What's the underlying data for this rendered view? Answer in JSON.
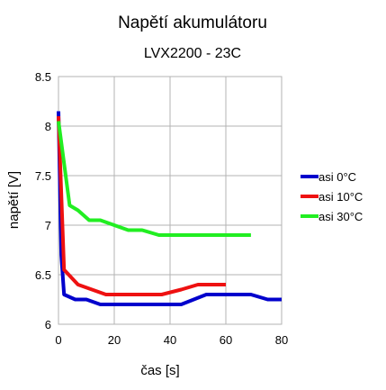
{
  "chart_data": {
    "type": "line",
    "title": "Napětí akumulátoru",
    "subtitle": "LVX2200 - 23C",
    "xlabel": "čas [s]",
    "ylabel": "napětí [V]",
    "xlim": [
      0,
      80
    ],
    "ylim": [
      6,
      8.5
    ],
    "xticks": [
      0,
      20,
      40,
      60,
      80
    ],
    "yticks": [
      6,
      6.5,
      7,
      7.5,
      8,
      8.5
    ],
    "x_tick_labels": [
      "0",
      "20",
      "40",
      "60",
      "80"
    ],
    "y_tick_labels": [
      "6",
      "6.5",
      "7",
      "7.5",
      "8",
      "8.5"
    ],
    "grid": true,
    "legend_position": "right",
    "series": [
      {
        "name": "asi 0°C",
        "color": "#0000cc",
        "points": [
          [
            0,
            8.15
          ],
          [
            1,
            6.7
          ],
          [
            2,
            6.3
          ],
          [
            6,
            6.25
          ],
          [
            10,
            6.25
          ],
          [
            15,
            6.2
          ],
          [
            44,
            6.2
          ],
          [
            53,
            6.3
          ],
          [
            69,
            6.3
          ],
          [
            75,
            6.25
          ],
          [
            80,
            6.25
          ]
        ]
      },
      {
        "name": "asi 10°C",
        "color": "#ee1111",
        "points": [
          [
            0,
            8.1
          ],
          [
            2,
            6.55
          ],
          [
            7,
            6.4
          ],
          [
            12,
            6.35
          ],
          [
            17,
            6.3
          ],
          [
            37,
            6.3
          ],
          [
            44,
            6.35
          ],
          [
            50,
            6.4
          ],
          [
            60,
            6.4
          ]
        ]
      },
      {
        "name": "asi 30°C",
        "color": "#22ee22",
        "points": [
          [
            0,
            8.05
          ],
          [
            4,
            7.2
          ],
          [
            7,
            7.15
          ],
          [
            11,
            7.05
          ],
          [
            15,
            7.05
          ],
          [
            20,
            7.0
          ],
          [
            25,
            6.95
          ],
          [
            30,
            6.95
          ],
          [
            36,
            6.9
          ],
          [
            69,
            6.9
          ]
        ]
      }
    ]
  }
}
